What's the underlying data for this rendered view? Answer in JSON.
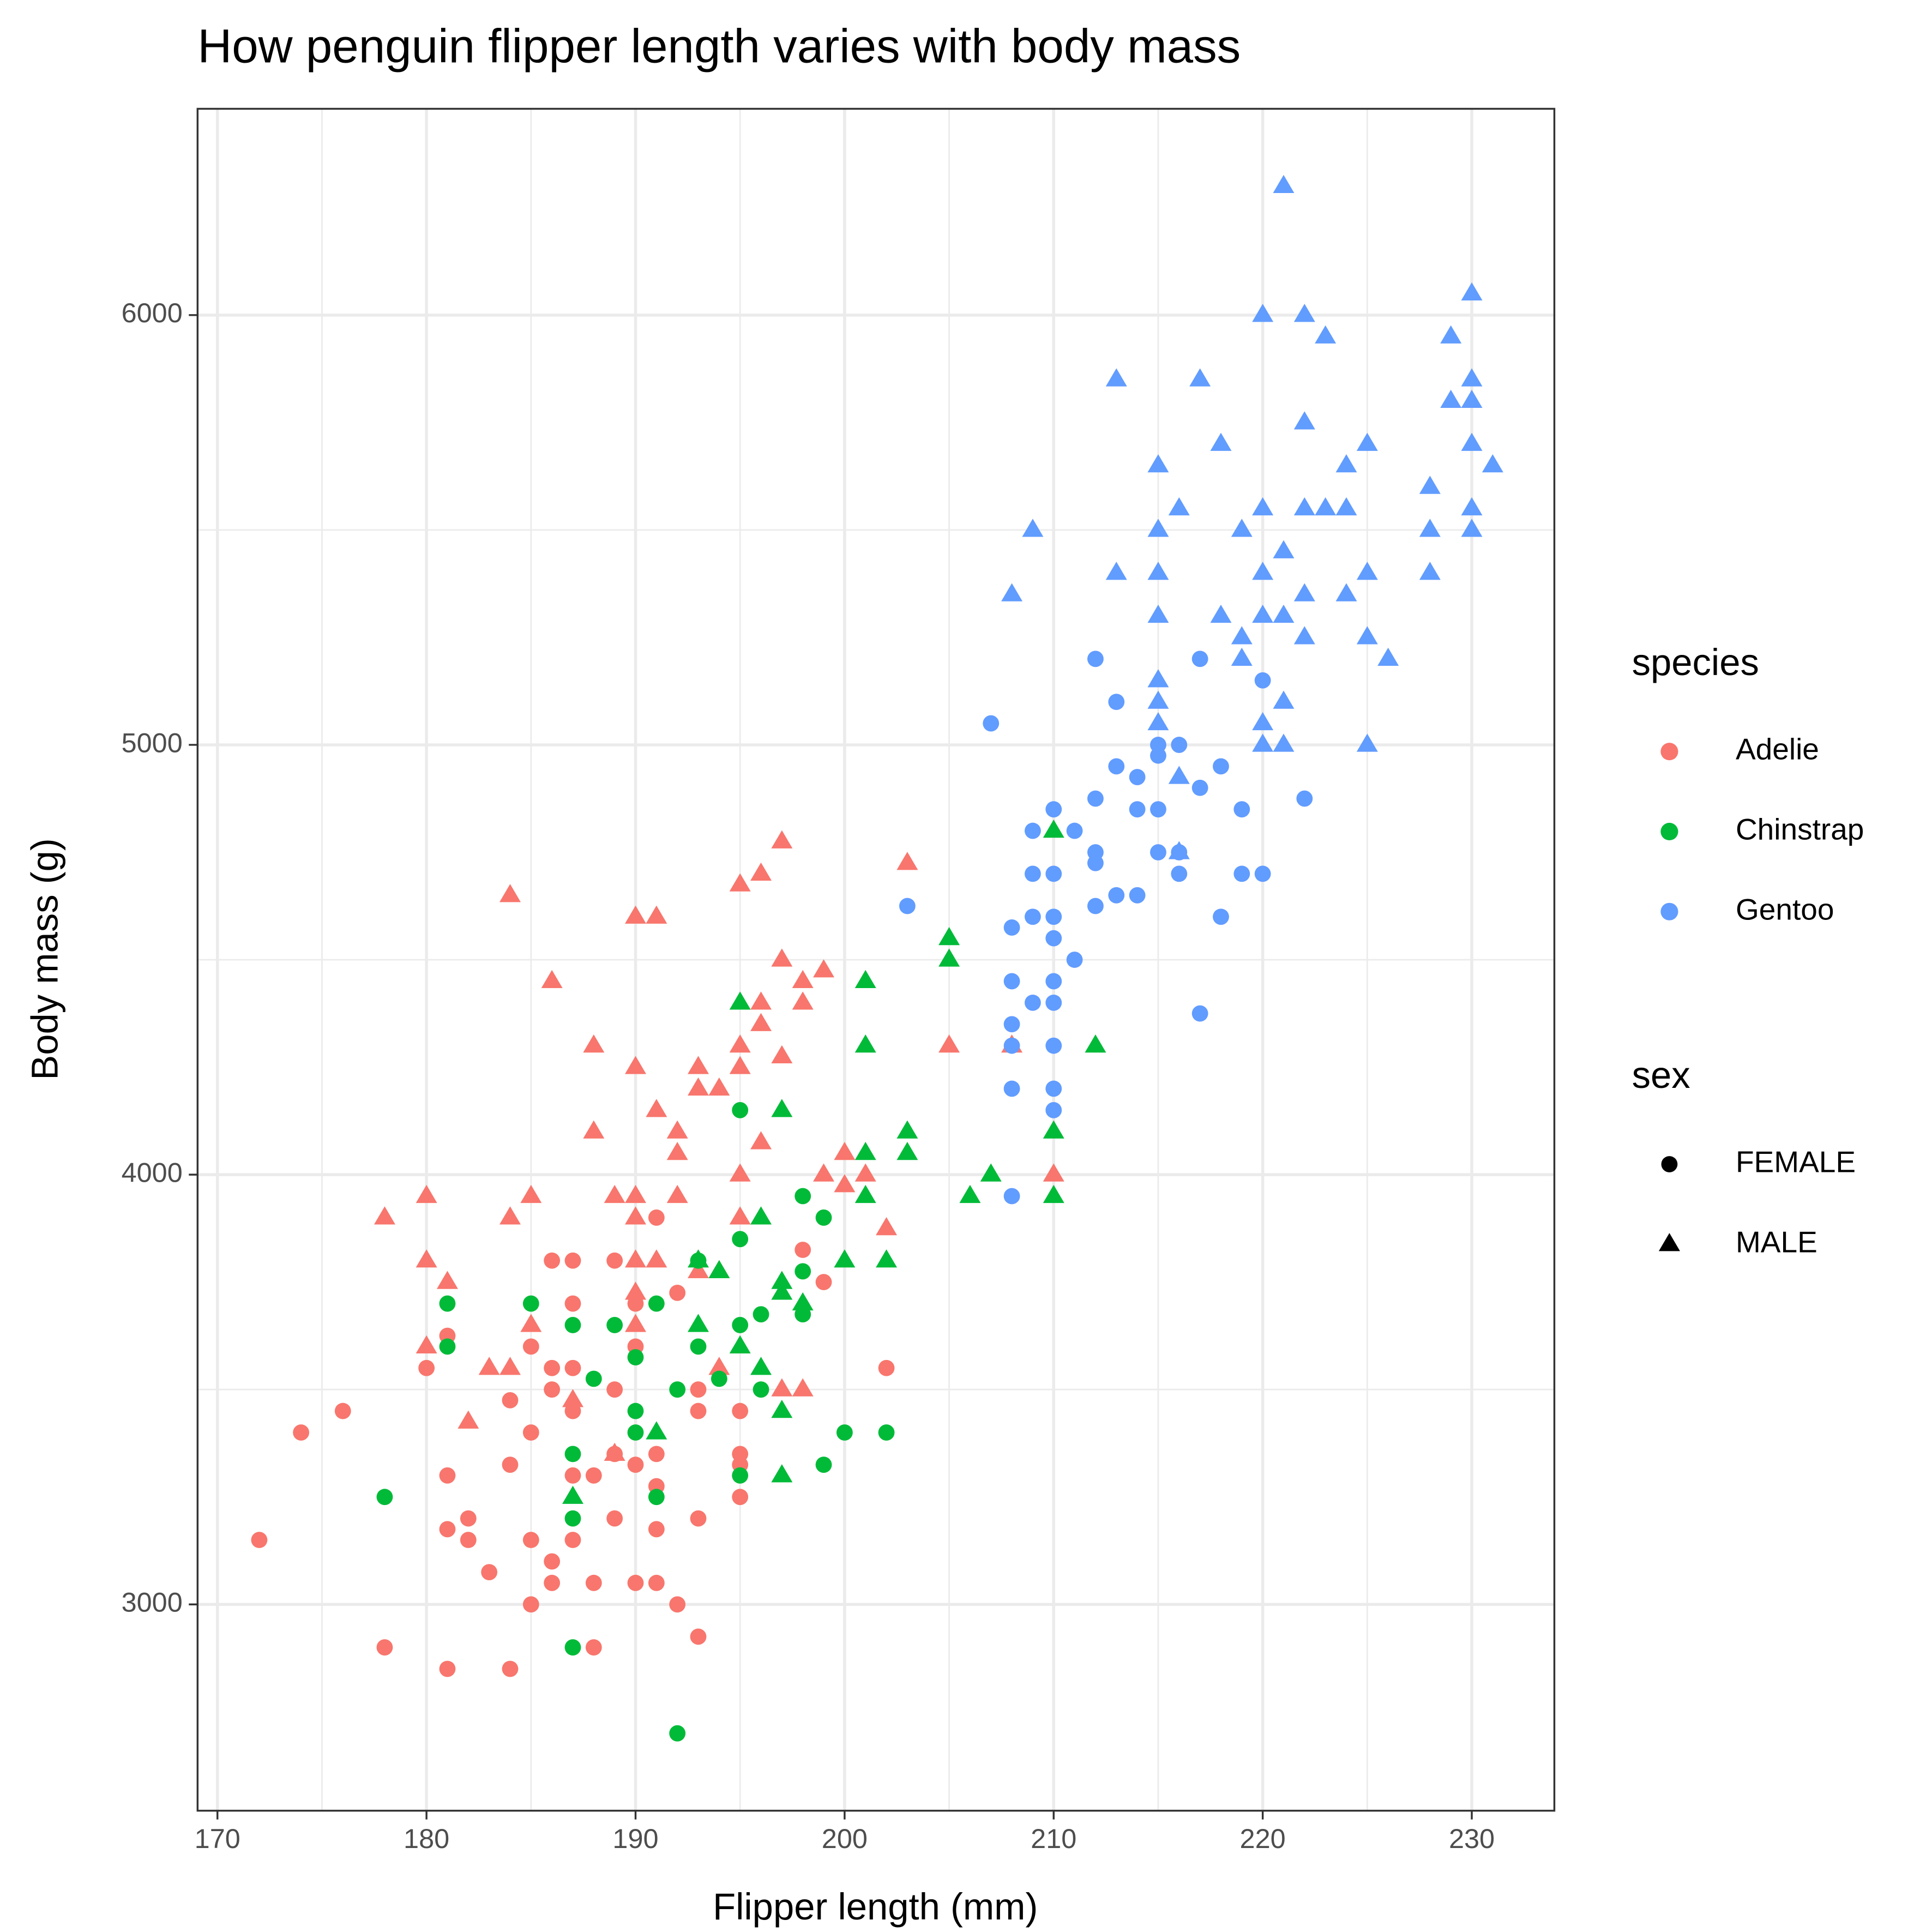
{
  "chart_data": {
    "type": "scatter",
    "title": "How penguin flipper length varies with body mass",
    "x_label": "Flipper length (mm)",
    "y_label": "Body mass (g)",
    "xlim": [
      169.05,
      233.95
    ],
    "ylim": [
      2520,
      6480
    ],
    "xticks": [
      170,
      180,
      190,
      200,
      210,
      220,
      230
    ],
    "yticks": [
      3000,
      4000,
      5000,
      6000
    ],
    "x_minor_ticks": [
      175,
      185,
      195,
      205,
      215,
      225
    ],
    "y_minor_ticks": [
      3500,
      4500,
      5500
    ],
    "grid": true,
    "legend_position": "right",
    "color_legend_title": "species",
    "sex": {
      "title": "sex",
      "labels": [
        "FEMALE",
        "MALE"
      ],
      "shapes": [
        "circle",
        "triangle"
      ]
    },
    "series": [
      {
        "name": "Adelie",
        "color": "#F8766D",
        "by_sex": [
          {
            "x": [
              172,
              174,
              176,
              178,
              180,
              181,
              181,
              181,
              181,
              182,
              182,
              183,
              184,
              184,
              184,
              185,
              185,
              185,
              185,
              186,
              186,
              186,
              186,
              186,
              187,
              187,
              187,
              187,
              187,
              187,
              188,
              188,
              188,
              189,
              189,
              189,
              189,
              190,
              190,
              190,
              190,
              191,
              191,
              191,
              191,
              191,
              192,
              192,
              193,
              193,
              193,
              193,
              195,
              195,
              195,
              195,
              198,
              199,
              202
            ],
            "y": [
              3150,
              3400,
              3450,
              2900,
              3550,
              3625,
              3300,
              3175,
              2850,
              3200,
              3150,
              3075,
              3475,
              3325,
              2850,
              3600,
              3400,
              3150,
              3000,
              3800,
              3550,
              3500,
              3100,
              3050,
              3800,
              3700,
              3550,
              3450,
              3300,
              3150,
              3300,
              3050,
              2900,
              3800,
              3500,
              3350,
              3200,
              3700,
              3600,
              3325,
              3050,
              3900,
              3350,
              3275,
              3175,
              3050,
              3725,
              3000,
              3500,
              3450,
              3200,
              2925,
              3450,
              3350,
              3325,
              3250,
              3825,
              3750,
              3550
            ]
          },
          {
            "x": [
              178,
              180,
              180,
              180,
              181,
              182,
              183,
              184,
              184,
              184,
              185,
              185,
              186,
              187,
              188,
              188,
              189,
              189,
              190,
              190,
              190,
              190,
              190,
              190,
              190,
              191,
              191,
              191,
              192,
              192,
              192,
              193,
              193,
              193,
              194,
              194,
              194,
              195,
              195,
              195,
              195,
              195,
              196,
              196,
              196,
              196,
              197,
              197,
              197,
              197,
              198,
              198,
              198,
              199,
              199,
              200,
              200,
              201,
              202,
              203,
              205,
              208,
              210
            ],
            "y": [
              3900,
              3950,
              3800,
              3600,
              3750,
              3425,
              3550,
              3550,
              4650,
              3900,
              3950,
              3650,
              4450,
              3475,
              4300,
              4100,
              3950,
              3350,
              4600,
              4250,
              3950,
              3900,
              3800,
              3725,
              3650,
              4600,
              4150,
              3800,
              4100,
              4050,
              3950,
              4250,
              4200,
              3775,
              4200,
              3775,
              3550,
              4675,
              4300,
              4250,
              4000,
              3900,
              4700,
              4400,
              4350,
              4075,
              4775,
              4500,
              4275,
              3500,
              4450,
              4400,
              3500,
              4475,
              4000,
              4050,
              3975,
              4000,
              3875,
              4725,
              4300,
              4300,
              4000
            ]
          }
        ]
      },
      {
        "name": "Chinstrap",
        "color": "#00BA38",
        "by_sex": [
          {
            "x": [
              178,
              181,
              181,
              185,
              187,
              187,
              187,
              187,
              188,
              189,
              190,
              190,
              190,
              191,
              191,
              192,
              192,
              193,
              193,
              194,
              195,
              195,
              195,
              195,
              196,
              196,
              198,
              198,
              198,
              199,
              199,
              200,
              202
            ],
            "y": [
              3250,
              3700,
              3600,
              3700,
              3650,
              3350,
              3200,
              2900,
              3525,
              3650,
              3575,
              3450,
              3400,
              3700,
              3250,
              3500,
              2700,
              3800,
              3600,
              3525,
              4150,
              3850,
              3650,
              3300,
              3675,
              3500,
              3950,
              3775,
              3675,
              3900,
              3325,
              3400,
              3400
            ]
          },
          {
            "x": [
              187,
              191,
              193,
              193,
              194,
              195,
              195,
              196,
              196,
              197,
              197,
              197,
              197,
              197,
              198,
              200,
              201,
              201,
              201,
              201,
              202,
              203,
              203,
              205,
              205,
              206,
              207,
              210,
              210,
              210,
              212
            ],
            "y": [
              3250,
              3400,
              3800,
              3650,
              3775,
              4400,
              3600,
              3900,
              3550,
              4150,
              3750,
              3725,
              3450,
              3300,
              3700,
              3800,
              4450,
              4300,
              4050,
              3950,
              3800,
              4100,
              4050,
              4550,
              4500,
              3950,
              4000,
              4800,
              4100,
              3950,
              4300
            ]
          }
        ]
      },
      {
        "name": "Gentoo",
        "color": "#619CFF",
        "by_sex": [
          {
            "x": [
              203,
              207,
              208,
              208,
              208,
              208,
              208,
              208,
              209,
              209,
              209,
              209,
              210,
              210,
              210,
              210,
              210,
              210,
              210,
              210,
              210,
              211,
              211,
              212,
              212,
              212,
              212,
              212,
              213,
              213,
              213,
              214,
              214,
              214,
              215,
              215,
              215,
              215,
              216,
              216,
              216,
              217,
              217,
              217,
              218,
              218,
              219,
              219,
              220,
              220,
              222
            ],
            "y": [
              4625,
              5050,
              4575,
              4450,
              4350,
              4300,
              4200,
              3950,
              4800,
              4700,
              4600,
              4400,
              4850,
              4700,
              4600,
              4550,
              4450,
              4400,
              4300,
              4200,
              4150,
              4800,
              4500,
              5200,
              4875,
              4750,
              4725,
              4625,
              5100,
              4950,
              4650,
              4925,
              4850,
              4650,
              5000,
              4975,
              4850,
              4750,
              5000,
              4750,
              4700,
              5200,
              4900,
              4375,
              4950,
              4600,
              4850,
              4700,
              5150,
              4700,
              4875
            ]
          },
          {
            "x": [
              208,
              209,
              213,
              213,
              215,
              215,
              215,
              215,
              215,
              215,
              215,
              216,
              216,
              216,
              217,
              218,
              218,
              219,
              219,
              219,
              220,
              220,
              220,
              220,
              220,
              220,
              221,
              221,
              221,
              221,
              221,
              222,
              222,
              222,
              222,
              222,
              223,
              223,
              224,
              224,
              224,
              225,
              225,
              225,
              225,
              226,
              228,
              228,
              228,
              229,
              229,
              230,
              230,
              230,
              230,
              230,
              230,
              231
            ],
            "y": [
              5350,
              5500,
              5850,
              5400,
              5650,
              5500,
              5400,
              5300,
              5150,
              5100,
              5050,
              5550,
              4925,
              4750,
              5850,
              5700,
              5300,
              5500,
              5250,
              5200,
              6000,
              5550,
              5400,
              5300,
              5050,
              5000,
              6300,
              5450,
              5300,
              5100,
              5000,
              6000,
              5750,
              5550,
              5350,
              5250,
              5950,
              5550,
              5650,
              5550,
              5350,
              5700,
              5400,
              5250,
              5000,
              5200,
              5600,
              5500,
              5400,
              5950,
              5800,
              6050,
              5850,
              5800,
              5700,
              5550,
              5500,
              5650
            ]
          }
        ]
      }
    ]
  }
}
